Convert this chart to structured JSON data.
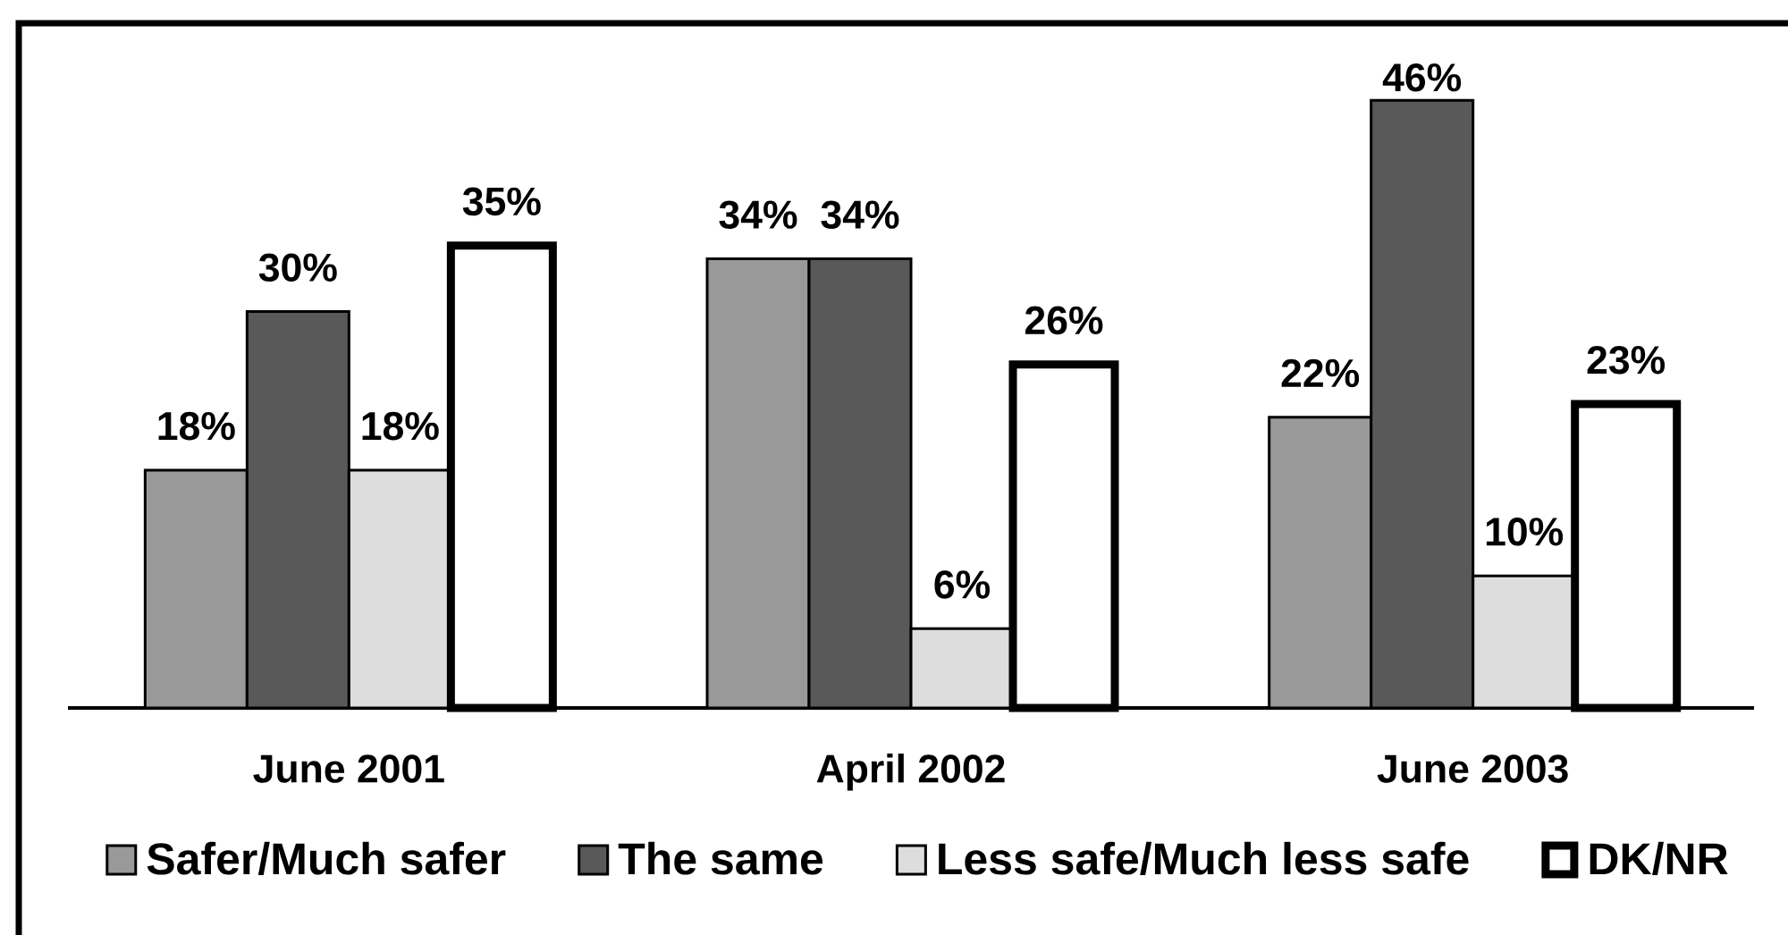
{
  "chart_data": {
    "type": "bar",
    "categories": [
      "June 2001",
      "April 2002",
      "June 2003"
    ],
    "series": [
      {
        "name": "Safer/Much safer",
        "color": "#999999",
        "values": [
          18,
          34,
          22
        ],
        "value_labels": [
          "18%",
          "34%",
          "22%"
        ]
      },
      {
        "name": "The same",
        "color": "#595959",
        "values": [
          30,
          34,
          46
        ],
        "value_labels": [
          "30%",
          "34%",
          "46%"
        ]
      },
      {
        "name": "Less safe/Much less safe",
        "color": "#dddddd",
        "values": [
          18,
          6,
          10
        ],
        "value_labels": [
          "18%",
          "6%",
          "10%"
        ]
      },
      {
        "name": "DK/NR",
        "color": "#ffffff",
        "values": [
          35,
          26,
          23
        ],
        "value_labels": [
          "35%",
          "26%",
          "23%"
        ]
      }
    ],
    "tick_labels": "x",
    "legend": "bottom"
  }
}
